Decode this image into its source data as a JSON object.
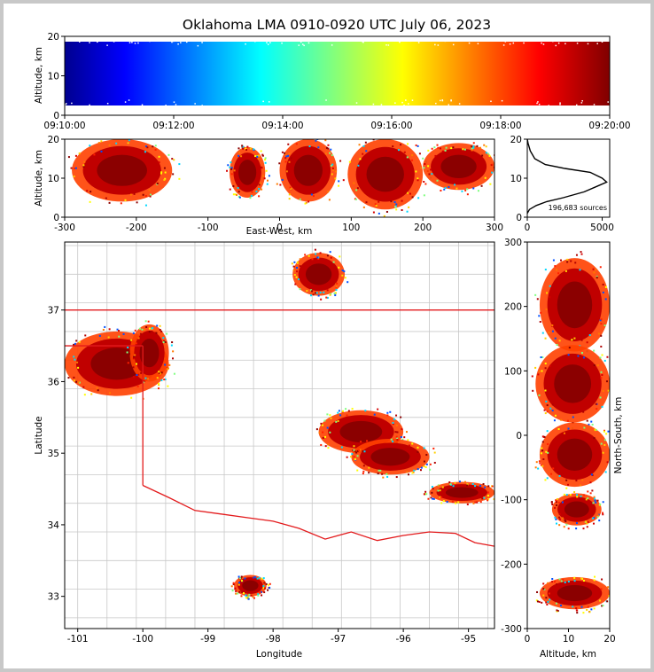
{
  "title": "Oklahoma LMA 0910-0920 UTC July 06, 2023",
  "source_count_label": "196,683 sources",
  "colors": {
    "state_border": "#e31a1c",
    "county_border": "#c8c8c8",
    "density_peak": "#8b0000"
  },
  "chart_data": [
    {
      "id": "time-altitude",
      "type": "scatter",
      "ylabel": "Altitude, km",
      "ylim": [
        0,
        20
      ],
      "yticks": [
        "0",
        "10",
        "20"
      ],
      "xticks": [
        "09:10:00",
        "09:12:00",
        "09:14:00",
        "09:16:00",
        "09:18:00",
        "09:20:00"
      ],
      "color_by": "time"
    },
    {
      "id": "east-west-altitude",
      "type": "scatter",
      "xlabel": "East-West, km",
      "ylabel": "Altitude, km",
      "xlim": [
        -300,
        300
      ],
      "ylim": [
        0,
        20
      ],
      "xticks": [
        "-300",
        "-200",
        "-100",
        "0",
        "100",
        "200",
        "300"
      ],
      "yticks": [
        "0",
        "10",
        "20"
      ],
      "clusters": [
        {
          "x": [
            -290,
            -150
          ],
          "alt": [
            4,
            20
          ]
        },
        {
          "x": [
            -70,
            -20
          ],
          "alt": [
            5,
            18
          ]
        },
        {
          "x": [
            0,
            80
          ],
          "alt": [
            4,
            20
          ]
        },
        {
          "x": [
            95,
            200
          ],
          "alt": [
            2,
            20
          ]
        },
        {
          "x": [
            200,
            300
          ],
          "alt": [
            7,
            19
          ]
        }
      ]
    },
    {
      "id": "altitude-histogram",
      "type": "line",
      "xlim": [
        0,
        5500
      ],
      "ylim": [
        0,
        20
      ],
      "xticks": [
        "0",
        "5000"
      ],
      "yticks": [
        "0",
        "10",
        "20"
      ],
      "points": [
        [
          0,
          1
        ],
        [
          150,
          2
        ],
        [
          600,
          3
        ],
        [
          1300,
          4
        ],
        [
          2400,
          5
        ],
        [
          3800,
          6.5
        ],
        [
          4700,
          8
        ],
        [
          5300,
          9
        ],
        [
          5000,
          10
        ],
        [
          4200,
          11.5
        ],
        [
          2500,
          12.5
        ],
        [
          1200,
          13.5
        ],
        [
          500,
          15
        ],
        [
          200,
          17
        ],
        [
          50,
          19
        ],
        [
          0,
          20
        ]
      ]
    },
    {
      "id": "plan-view",
      "type": "scatter",
      "xlabel": "Longitude",
      "ylabel": "Latitude",
      "xlim": [
        -101.2,
        -94.6
      ],
      "ylim": [
        32.55,
        37.95
      ],
      "xticks": [
        "-101",
        "-100",
        "-99",
        "-98",
        "-97",
        "-96",
        "-95"
      ],
      "yticks": [
        "33",
        "34",
        "35",
        "36",
        "37"
      ],
      "clusters": [
        {
          "lon": [
            -101.2,
            -99.6
          ],
          "lat": [
            35.8,
            36.7
          ]
        },
        {
          "lon": [
            -100.2,
            -99.6
          ],
          "lat": [
            36.0,
            36.8
          ]
        },
        {
          "lon": [
            -97.7,
            -96.9
          ],
          "lat": [
            37.2,
            37.8
          ]
        },
        {
          "lon": [
            -97.3,
            -96.0
          ],
          "lat": [
            35.0,
            35.6
          ]
        },
        {
          "lon": [
            -96.8,
            -95.6
          ],
          "lat": [
            34.7,
            35.2
          ]
        },
        {
          "lon": [
            -95.6,
            -94.6
          ],
          "lat": [
            34.3,
            34.6
          ]
        },
        {
          "lon": [
            -98.6,
            -98.1
          ],
          "lat": [
            33.0,
            33.3
          ]
        }
      ]
    },
    {
      "id": "altitude-north-south",
      "type": "scatter",
      "xlabel": "Altitude, km",
      "ylabel": "North-South, km",
      "xlim": [
        0,
        20
      ],
      "ylim": [
        -300,
        300
      ],
      "xticks": [
        "0",
        "10",
        "20"
      ],
      "yticks": [
        "-300",
        "-200",
        "-100",
        "0",
        "100",
        "200",
        "300"
      ],
      "clusters": [
        {
          "ns": [
            130,
            275
          ],
          "alt": [
            3,
            20
          ]
        },
        {
          "ns": [
            20,
            140
          ],
          "alt": [
            2,
            20
          ]
        },
        {
          "ns": [
            -80,
            20
          ],
          "alt": [
            3,
            20
          ]
        },
        {
          "ns": [
            -140,
            -90
          ],
          "alt": [
            6,
            18
          ]
        },
        {
          "ns": [
            -270,
            -220
          ],
          "alt": [
            3,
            20
          ]
        }
      ]
    }
  ]
}
